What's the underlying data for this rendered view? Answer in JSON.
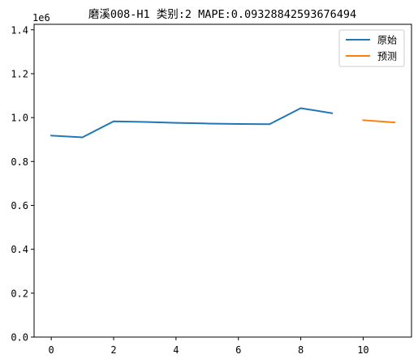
{
  "chart_data": {
    "type": "line",
    "title": "磨溪008-H1 类别:2 MAPE:0.09328842593676494",
    "xlabel": "",
    "ylabel": "",
    "y_offset_text": "1e6",
    "xlim": [
      -0.55,
      11.55
    ],
    "ylim": [
      0,
      1425000
    ],
    "x_ticks": [
      0,
      2,
      4,
      6,
      8,
      10
    ],
    "x_tick_labels": [
      "0",
      "2",
      "4",
      "6",
      "8",
      "10"
    ],
    "y_ticks": [
      0,
      200000,
      400000,
      600000,
      800000,
      1000000,
      1200000,
      1400000
    ],
    "y_tick_labels": [
      "0.0",
      "0.2",
      "0.4",
      "0.6",
      "0.8",
      "1.0",
      "1.2",
      "1.4"
    ],
    "grid": false,
    "legend_position": "top-right",
    "series": [
      {
        "name": "原始",
        "color": "#1f77b4",
        "x": [
          0,
          1,
          2,
          3,
          4,
          5,
          6,
          7,
          8,
          9
        ],
        "values": [
          918000,
          910000,
          983000,
          980000,
          976000,
          973000,
          971000,
          970000,
          1043000,
          1020000
        ]
      },
      {
        "name": "预测",
        "color": "#ff7f0e",
        "x": [
          10,
          11
        ],
        "values": [
          988000,
          978000
        ]
      }
    ]
  }
}
